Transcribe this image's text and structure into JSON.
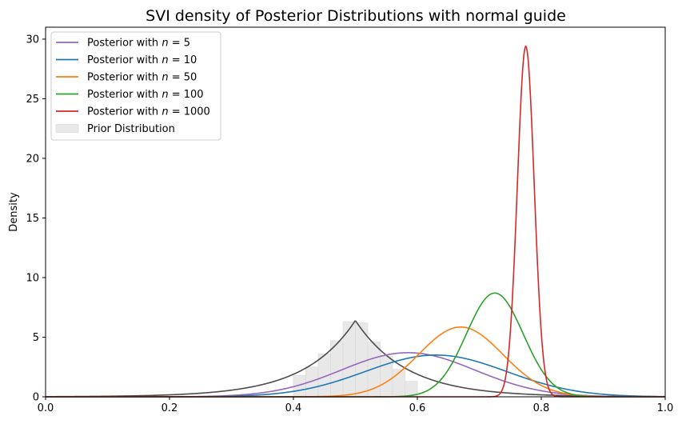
{
  "chart_data": {
    "type": "line",
    "title": "SVI density of Posterior Distributions with normal guide",
    "xlabel": "",
    "ylabel": "Density",
    "xlim": [
      0.0,
      1.0
    ],
    "ylim": [
      0,
      31
    ],
    "xticks": [
      "0.0",
      "0.2",
      "0.4",
      "0.6",
      "0.8",
      "1.0"
    ],
    "yticks": [
      "0",
      "5",
      "10",
      "15",
      "20",
      "25",
      "30"
    ],
    "legend_position": "top-left",
    "series": [
      {
        "name": "Posterior with $n = 5$",
        "legend_prefix": "Posterior with ",
        "legend_math": "n",
        "legend_value": "5",
        "type": "normal",
        "mean": 0.585,
        "peak": 3.7,
        "color": "#9467bd"
      },
      {
        "name": "Posterior with $n = 10$",
        "legend_prefix": "Posterior with ",
        "legend_math": "n",
        "legend_value": "10",
        "type": "normal",
        "mean": 0.63,
        "peak": 3.5,
        "color": "#1f77b4"
      },
      {
        "name": "Posterior with $n = 50$",
        "legend_prefix": "Posterior with ",
        "legend_math": "n",
        "legend_value": "50",
        "type": "normal",
        "mean": 0.67,
        "peak": 5.85,
        "color": "#ff7f0e"
      },
      {
        "name": "Posterior with $n = 100$",
        "legend_prefix": "Posterior with ",
        "legend_math": "n",
        "legend_value": "100",
        "type": "normal",
        "mean": 0.725,
        "peak": 8.7,
        "color": "#2ca02c"
      },
      {
        "name": "Posterior with $n = 1000$",
        "legend_prefix": "Posterior with ",
        "legend_math": "n",
        "legend_value": "1000",
        "type": "normal",
        "mean": 0.775,
        "peak": 29.4,
        "color": "#d62728"
      }
    ],
    "prior": {
      "name": "Prior Distribution",
      "color": "#e8e8e8",
      "edge_color": "#d8d8d8",
      "kde_color": "#4d4d4d",
      "kde_peak_x": 0.5,
      "kde_peak_y": 6.4,
      "histogram": {
        "bin_edges": [
          0.4,
          0.42,
          0.44,
          0.46,
          0.48,
          0.5,
          0.52,
          0.54,
          0.56,
          0.58,
          0.6
        ],
        "values": [
          1.8,
          2.5,
          3.6,
          4.7,
          6.3,
          6.2,
          4.6,
          3.4,
          2.3,
          1.3
        ]
      }
    }
  }
}
